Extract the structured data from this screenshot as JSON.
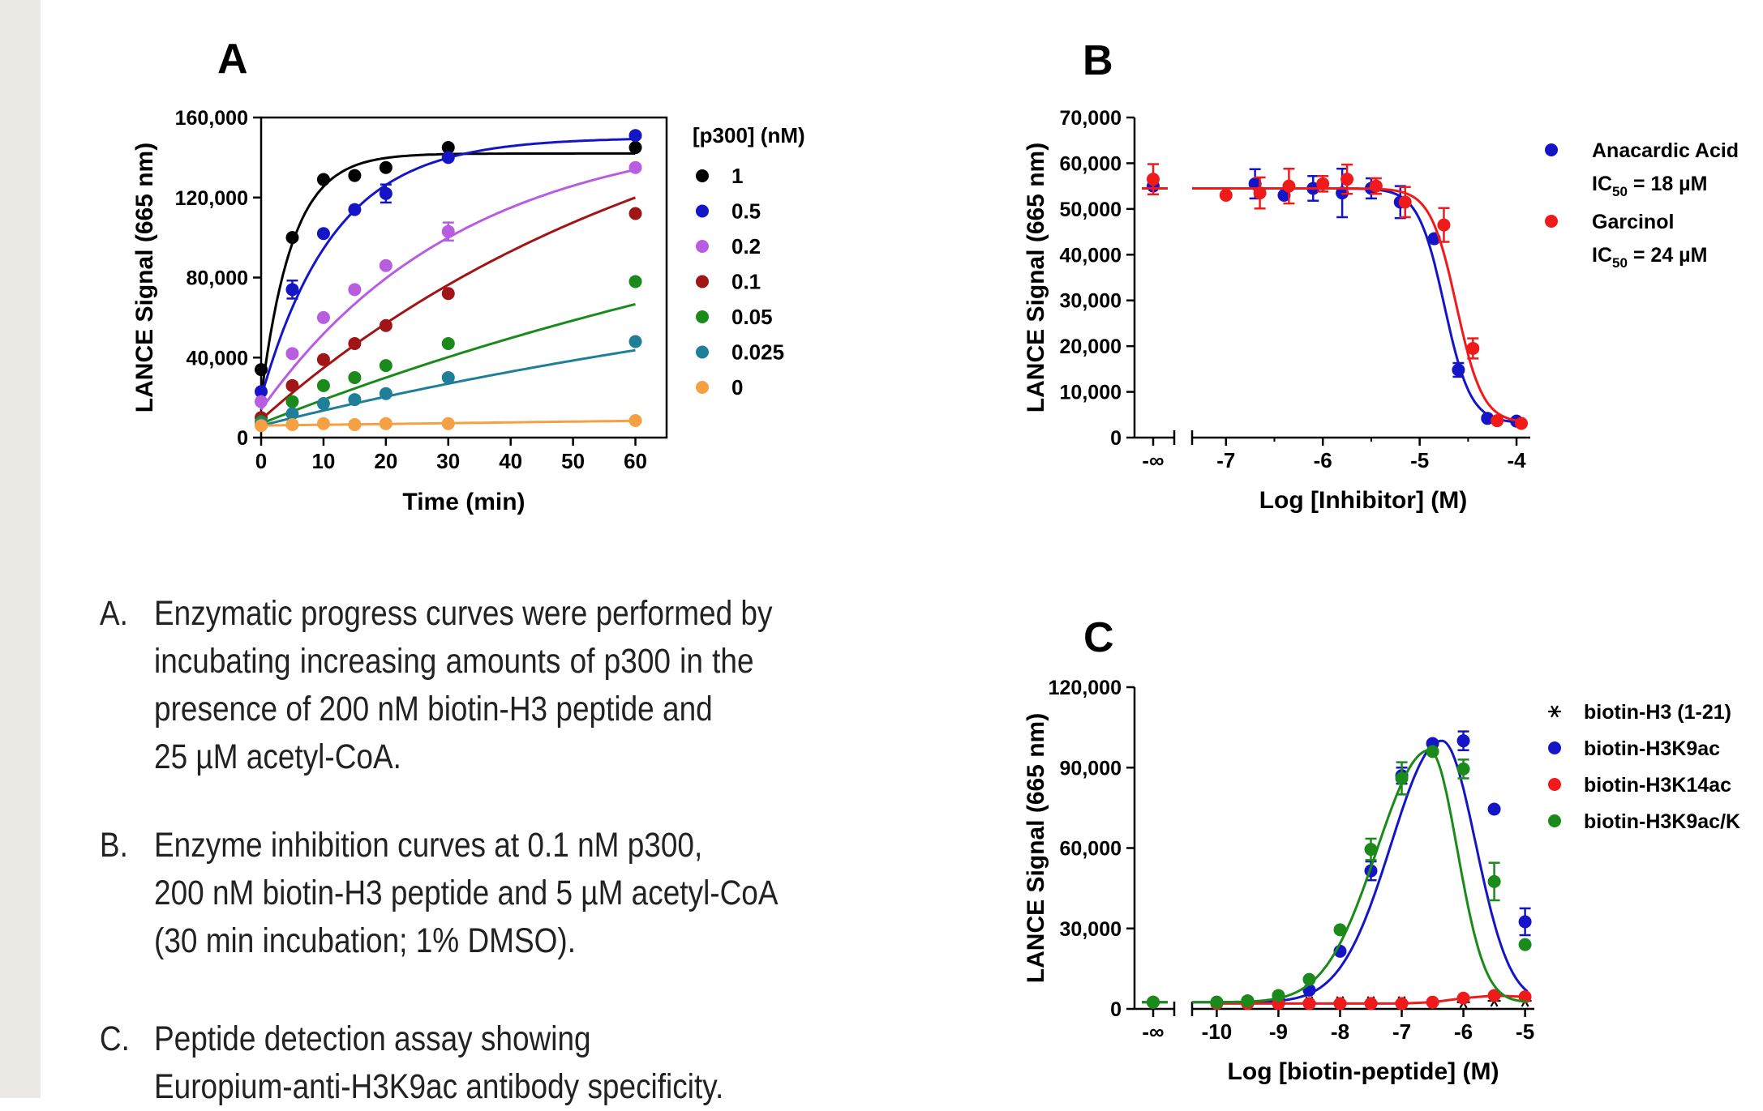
{
  "colors": {
    "black": "#000000",
    "blue": "#1515c8",
    "violet": "#b85ce0",
    "darkred": "#a01515",
    "green": "#1a8a1a",
    "teal": "#1f7f99",
    "orange": "#f5a043",
    "red": "#f01a1a",
    "band": "#ece9e4"
  },
  "chart_data": [
    {
      "panel": "A",
      "type": "line",
      "xlabel": "Time (min)",
      "ylabel": "LANCE Signal (665 nm)",
      "xlim": [
        0,
        65
      ],
      "ylim": [
        0,
        160000
      ],
      "xticks": [
        "0",
        "10",
        "20",
        "30",
        "40",
        "50",
        "60"
      ],
      "yticks": [
        "0",
        "40,000",
        "80,000",
        "120,000",
        "160,000"
      ],
      "legend_title": "[p300] (nM)",
      "legend_position": "right",
      "series": [
        {
          "name": "1",
          "color": "#000000",
          "x": [
            0,
            5,
            10,
            15,
            20,
            30,
            60
          ],
          "y": [
            34000,
            100000,
            129000,
            131000,
            135000,
            145000,
            145000
          ],
          "yerr": [
            0,
            0,
            0,
            0,
            0,
            0,
            0
          ],
          "curve": {
            "kind": "exp",
            "y0": 20000,
            "plateau": 142000,
            "k": 0.2
          }
        },
        {
          "name": "0.5",
          "color": "#1515c8",
          "x": [
            0,
            5,
            10,
            15,
            20,
            30,
            60
          ],
          "y": [
            23000,
            74000,
            102000,
            114000,
            122000,
            140000,
            151000
          ],
          "yerr": [
            0,
            4500,
            0,
            0,
            4500,
            0,
            0
          ],
          "curve": {
            "kind": "exp",
            "y0": 20000,
            "plateau": 150000,
            "k": 0.085
          }
        },
        {
          "name": "0.2",
          "color": "#b85ce0",
          "x": [
            0,
            5,
            10,
            15,
            20,
            30,
            60
          ],
          "y": [
            18000,
            42000,
            60000,
            74000,
            86000,
            103000,
            135000
          ],
          "yerr": [
            0,
            0,
            0,
            0,
            0,
            4500,
            0
          ],
          "curve": {
            "kind": "exp",
            "y0": 14000,
            "plateau": 156000,
            "k": 0.031
          }
        },
        {
          "name": "0.1",
          "color": "#a01515",
          "x": [
            0,
            5,
            10,
            15,
            20,
            30,
            60
          ],
          "y": [
            10000,
            26000,
            39000,
            47000,
            56000,
            72000,
            112000
          ],
          "yerr": [
            0,
            0,
            0,
            0,
            0,
            0,
            0
          ],
          "curve": {
            "kind": "exp",
            "y0": 9000,
            "plateau": 200000,
            "k": 0.0145
          }
        },
        {
          "name": "0.05",
          "color": "#1a8a1a",
          "x": [
            0,
            5,
            10,
            15,
            20,
            30,
            60
          ],
          "y": [
            8000,
            18000,
            26000,
            30000,
            36000,
            47000,
            78000
          ],
          "yerr": [
            0,
            0,
            0,
            0,
            0,
            0,
            0
          ],
          "curve": {
            "kind": "exp",
            "y0": 7000,
            "plateau": 170000,
            "k": 0.0076
          }
        },
        {
          "name": "0.025",
          "color": "#1f7f99",
          "x": [
            0,
            5,
            10,
            15,
            20,
            30,
            60
          ],
          "y": [
            7000,
            12000,
            17000,
            19000,
            22000,
            30000,
            48000
          ],
          "yerr": [
            0,
            0,
            0,
            0,
            0,
            0,
            0
          ],
          "curve": {
            "kind": "exp",
            "y0": 6000,
            "plateau": 110000,
            "k": 0.0075
          }
        },
        {
          "name": "0",
          "color": "#f5a043",
          "x": [
            0,
            5,
            10,
            15,
            20,
            30,
            60
          ],
          "y": [
            6000,
            6500,
            7000,
            6500,
            7000,
            7000,
            8500
          ],
          "yerr": [
            0,
            0,
            0,
            0,
            0,
            0,
            0
          ],
          "curve": {
            "kind": "linear",
            "y0": 6000,
            "slope": 40
          }
        }
      ]
    },
    {
      "panel": "B",
      "type": "scatter",
      "xlabel": "Log [Inhibitor] (M)",
      "ylabel": "LANCE Signal (665 nm)",
      "xlim": [
        -7.35,
        -3.9
      ],
      "ylim": [
        0,
        70000
      ],
      "xticks": [
        "-7",
        "-6",
        "-5",
        "-4"
      ],
      "x_break_label": "-∞",
      "yticks": [
        "0",
        "10,000",
        "20,000",
        "30,000",
        "40,000",
        "50,000",
        "60,000",
        "70,000"
      ],
      "legend_position": "right",
      "series": [
        {
          "name": "Anacardic Acid",
          "legend_line2": "IC",
          "legend_sub": "50",
          "legend_line2_rest": " = 18 µM",
          "color": "#1515c8",
          "x0": 55000,
          "x": [
            -6.7,
            -6.4,
            -6.1,
            -5.8,
            -5.5,
            -5.2,
            -4.85,
            -4.6,
            -4.3,
            -4.0
          ],
          "y": [
            55500,
            53000,
            54500,
            53500,
            54500,
            51500,
            43500,
            14800,
            4200,
            3600
          ],
          "yerr": [
            3200,
            0,
            2700,
            5300,
            2200,
            3500,
            0,
            1500,
            0,
            0
          ],
          "curve": {
            "top": 54500,
            "bottom": 3200,
            "logIC50": -4.745,
            "hill": 3.2
          }
        },
        {
          "name": "Garcinol",
          "legend_line2": "IC",
          "legend_sub": "50",
          "legend_line2_rest": " = 24 µM",
          "color": "#f01a1a",
          "x0": 56500,
          "x": [
            -7.0,
            -6.65,
            -6.35,
            -6.0,
            -5.75,
            -5.45,
            -5.15,
            -4.75,
            -4.45,
            -4.2,
            -3.95
          ],
          "y": [
            53000,
            53500,
            55000,
            55500,
            56500,
            55000,
            51500,
            46500,
            19500,
            3700,
            3100
          ],
          "yerr": [
            0,
            3400,
            3800,
            1700,
            3200,
            1700,
            3300,
            3700,
            2200,
            0,
            0
          ],
          "curve": {
            "top": 54500,
            "bottom": 3200,
            "logIC50": -4.62,
            "hill": 3.2
          }
        }
      ]
    },
    {
      "panel": "C",
      "type": "scatter",
      "xlabel": "Log [biotin-peptide] (M)",
      "ylabel": "LANCE Signal (665 nm)",
      "xlim": [
        -10.4,
        -4.85
      ],
      "ylim": [
        0,
        120000
      ],
      "xticks": [
        "-10",
        "-9",
        "-8",
        "-7",
        "-6",
        "-5"
      ],
      "x_break_label": "-∞",
      "yticks": [
        "0",
        "30,000",
        "60,000",
        "90,000",
        "120,000"
      ],
      "legend_position": "right",
      "series": [
        {
          "name": "biotin-H3 (1-21)",
          "marker": "star",
          "color": "#000000",
          "x0": 2500,
          "x": [
            -10,
            -9.5,
            -9,
            -8.5,
            -8,
            -7.5,
            -7,
            -6.5,
            -6,
            -5.5,
            -5
          ],
          "y": [
            2500,
            2500,
            2500,
            2500,
            2500,
            2500,
            2500,
            2500,
            2500,
            3000,
            3000
          ],
          "yerr": [
            0,
            0,
            0,
            0,
            0,
            0,
            0,
            0,
            0,
            0,
            0
          ],
          "curve": null
        },
        {
          "name": "biotin-H3K9ac",
          "color": "#1515c8",
          "x0": 2500,
          "x": [
            -10,
            -9.5,
            -9,
            -8.5,
            -8,
            -7.5,
            -7,
            -6.5,
            -6,
            -5.5,
            -5
          ],
          "y": [
            2500,
            3000,
            3500,
            7000,
            21500,
            51500,
            87000,
            99000,
            100000,
            74500,
            32500
          ],
          "yerr": [
            0,
            0,
            0,
            0,
            0,
            3500,
            3000,
            0,
            3500,
            0,
            5000
          ],
          "curve": {
            "base": 2500,
            "peak": 100000,
            "center": -6.35,
            "width_left": 0.82,
            "width_right": 0.55
          }
        },
        {
          "name": "biotin-H3K14ac",
          "color": "#f01a1a",
          "x0": 2500,
          "x": [
            -10,
            -9.5,
            -9,
            -8.5,
            -8,
            -7.5,
            -7,
            -6.5,
            -6,
            -5.5,
            -5
          ],
          "y": [
            2000,
            2000,
            2000,
            2000,
            2000,
            2000,
            2000,
            2500,
            4000,
            5000,
            4500
          ],
          "yerr": [
            0,
            0,
            0,
            0,
            0,
            0,
            0,
            0,
            0,
            0,
            0
          ],
          "curve": "flat"
        },
        {
          "name": "biotin-H3K9ac/K",
          "color": "#1a8a1a",
          "x0": 2500,
          "x": [
            -10,
            -9.5,
            -9,
            -8.5,
            -8,
            -7.5,
            -7,
            -6.5,
            -6,
            -5.5,
            -5
          ],
          "y": [
            2500,
            3000,
            5000,
            11000,
            29500,
            59500,
            86000,
            96000,
            89500,
            47500,
            24000
          ],
          "yerr": [
            0,
            0,
            0,
            0,
            0,
            4000,
            6000,
            0,
            3500,
            7000,
            0
          ],
          "curve": {
            "base": 2500,
            "peak": 96500,
            "center": -6.55,
            "width_left": 0.85,
            "width_right": 0.45
          }
        }
      ]
    }
  ],
  "panels": {
    "a_letter": "A",
    "b_letter": "B",
    "c_letter": "C"
  },
  "captions": {
    "a": {
      "label": "A.",
      "lines": [
        "Enzymatic progress curves were performed by",
        "incubating increasing amounts of p300 in the",
        "presence of 200 nM biotin-H3 peptide and",
        "25 µM acetyl-CoA."
      ]
    },
    "b": {
      "label": "B.",
      "lines": [
        "Enzyme inhibition curves at 0.1 nM p300,",
        "200 nM biotin-H3 peptide and 5 µM acetyl-CoA",
        "(30 min incubation; 1% DMSO)."
      ]
    },
    "c": {
      "label": "C.",
      "lines": [
        "Peptide detection assay showing",
        "Europium-anti-H3K9ac antibody specificity."
      ]
    }
  }
}
